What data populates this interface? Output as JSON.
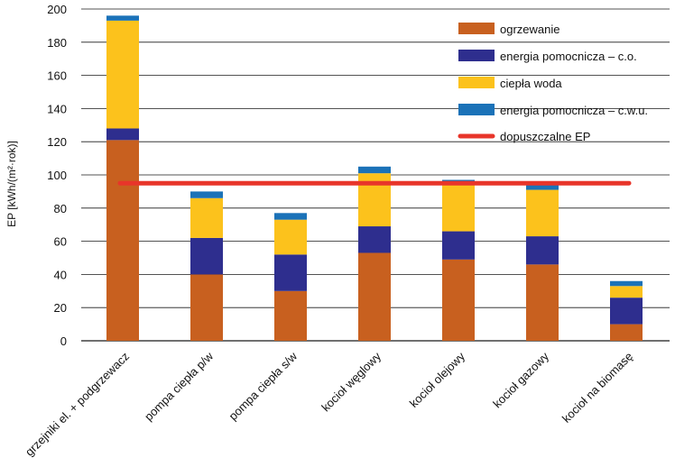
{
  "chart_data": {
    "type": "bar",
    "stacked": true,
    "title": "",
    "xlabel": "",
    "ylabel": "EP [kWh/(m²·rok)]",
    "ylim": [
      0,
      200
    ],
    "yticks": [
      0,
      20,
      40,
      60,
      80,
      100,
      120,
      140,
      160,
      180,
      200
    ],
    "grid": true,
    "categories": [
      "grzejniki el. + podgrzewacz",
      "pompa ciepła p/w",
      "pompa ciepła s/w",
      "kocioł węglowy",
      "kocioł olejowy",
      "kocioł gazowy",
      "kocioł na biomasę"
    ],
    "series": [
      {
        "name": "ogrzewanie",
        "color": "#c8601f",
        "values": [
          121,
          40,
          30,
          53,
          49,
          46,
          10
        ]
      },
      {
        "name": "energia pomocnicza – c.o.",
        "color": "#2e2e8e",
        "values": [
          7,
          22,
          22,
          16,
          17,
          17,
          16
        ]
      },
      {
        "name": "ciepła woda",
        "color": "#fcc21c",
        "values": [
          65,
          24,
          21,
          32,
          29,
          28,
          7
        ]
      },
      {
        "name": "energia pomocnicza – c.w.u.",
        "color": "#1b72b8",
        "values": [
          3,
          4,
          4,
          4,
          2,
          3,
          3
        ]
      }
    ],
    "reference_line": {
      "name": "dopuszczalne EP",
      "color": "#e8352a",
      "value": 95
    },
    "legend_position": "top-right"
  }
}
